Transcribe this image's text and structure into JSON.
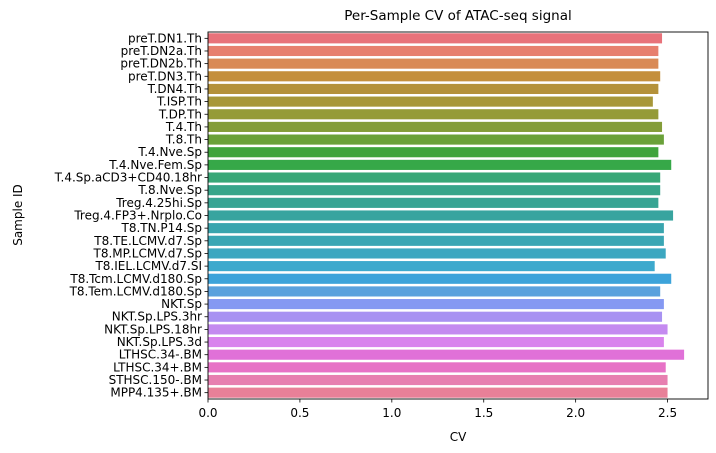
{
  "chart_data": {
    "type": "bar",
    "orientation": "horizontal",
    "title": "Per-Sample CV of ATAC-seq signal",
    "xlabel": "CV",
    "ylabel": "Sample ID",
    "xlim": [
      0,
      2.72
    ],
    "xticks": [
      0.0,
      0.5,
      1.0,
      1.5,
      2.0,
      2.5
    ],
    "xtick_labels": [
      "0.0",
      "0.5",
      "1.0",
      "1.5",
      "2.0",
      "2.5"
    ],
    "grid": false,
    "categories": [
      "preT.DN1.Th",
      "preT.DN2a.Th",
      "preT.DN2b.Th",
      "preT.DN3.Th",
      "T.DN4.Th",
      "T.ISP.Th",
      "T.DP.Th",
      "T.4.Th",
      "T.8.Th",
      "T.4.Nve.Sp",
      "T.4.Nve.Fem.Sp",
      "T.4.Sp.aCD3+CD40.18hr",
      "T.8.Nve.Sp",
      "Treg.4.25hi.Sp",
      "Treg.4.FP3+.Nrplo.Co",
      "T8.TN.P14.Sp",
      "T8.TE.LCMV.d7.Sp",
      "T8.MP.LCMV.d7.Sp",
      "T8.IEL.LCMV.d7.SI",
      "T8.Tcm.LCMV.d180.Sp",
      "T8.Tem.LCMV.d180.Sp",
      "NKT.Sp",
      "NKT.Sp.LPS.3hr",
      "NKT.Sp.LPS.18hr",
      "NKT.Sp.LPS.3d",
      "LTHSC.34-.BM",
      "LTHSC.34+.BM",
      "STHSC.150-.BM",
      "MPP4.135+.BM"
    ],
    "values": [
      2.47,
      2.45,
      2.45,
      2.46,
      2.45,
      2.42,
      2.45,
      2.47,
      2.48,
      2.45,
      2.52,
      2.46,
      2.46,
      2.45,
      2.53,
      2.48,
      2.48,
      2.49,
      2.43,
      2.52,
      2.46,
      2.48,
      2.47,
      2.5,
      2.48,
      2.59,
      2.49,
      2.5,
      2.5
    ],
    "colors": [
      "#e8727a",
      "#e77f6e",
      "#d98a56",
      "#c48f3c",
      "#b4913a",
      "#a79739",
      "#959b38",
      "#849d39",
      "#6aa139",
      "#3fa43c",
      "#36a848",
      "#38a777",
      "#37a58a",
      "#38a493",
      "#38a49f",
      "#39a5ae",
      "#3aa6b4",
      "#3ca7c0",
      "#3da9cd",
      "#3ca3da",
      "#5aa1dd",
      "#8599f2",
      "#a892f2",
      "#c48af0",
      "#d983ed",
      "#e071d8",
      "#e772c6",
      "#e77fb0",
      "#e88098"
    ]
  }
}
